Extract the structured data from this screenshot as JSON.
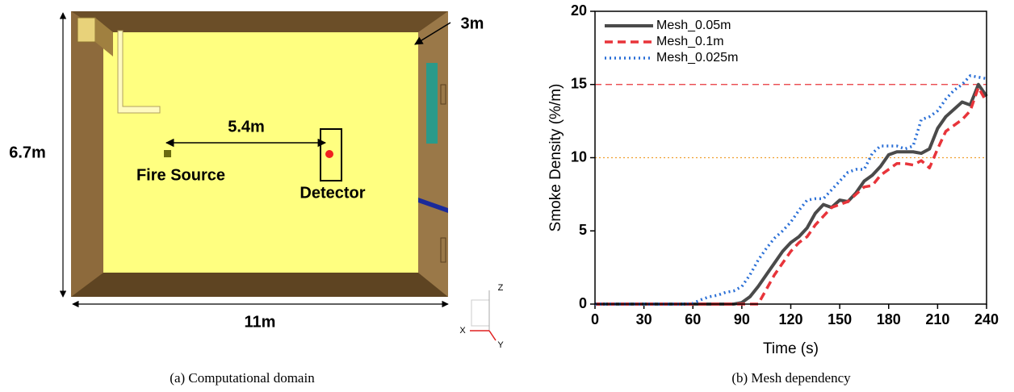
{
  "diagram": {
    "depth_label": "3m",
    "height_label": "6.7m",
    "width_label": "11m",
    "distance_label": "5.4m",
    "fire_source": "Fire Source",
    "detector": "Detector",
    "axes": {
      "z": "Z",
      "x": "X",
      "y": "Y"
    }
  },
  "captions": [
    "(a)  Computational domain",
    "(b)  Mesh dependency"
  ],
  "chart_data": {
    "type": "line",
    "x_label": "Time (s)",
    "y_label": "Smoke Density (%/m)",
    "x": [
      0,
      5,
      10,
      15,
      20,
      25,
      30,
      35,
      40,
      45,
      50,
      55,
      60,
      65,
      70,
      75,
      80,
      85,
      90,
      95,
      100,
      105,
      110,
      115,
      120,
      125,
      130,
      135,
      140,
      145,
      150,
      155,
      160,
      165,
      170,
      175,
      180,
      185,
      190,
      195,
      200,
      205,
      210,
      215,
      220,
      225,
      230,
      235,
      240
    ],
    "series": [
      {
        "name": "Mesh_0.05m",
        "color": "#4a4a4a",
        "line_style": "solid",
        "values": [
          0,
          0,
          0,
          0,
          0,
          0,
          0,
          0,
          0,
          0,
          0,
          0,
          0,
          0,
          0,
          0,
          0,
          0,
          0.1,
          0.5,
          1.2,
          2.0,
          2.8,
          3.6,
          4.2,
          4.6,
          5.2,
          6.2,
          6.8,
          6.6,
          7.1,
          7.0,
          7.6,
          8.4,
          8.8,
          9.4,
          10.2,
          10.4,
          10.4,
          10.4,
          10.3,
          10.6,
          12.0,
          12.8,
          13.3,
          13.8,
          13.6,
          15.0,
          14.2
        ]
      },
      {
        "name": "Mesh_0.1m",
        "color": "#e8343a",
        "line_style": "dashed",
        "values": [
          0,
          0,
          0,
          0,
          0,
          0,
          0,
          0,
          0,
          0,
          0,
          0,
          0,
          0,
          0,
          0,
          0,
          0,
          0,
          0,
          0,
          1.0,
          2.0,
          2.8,
          3.6,
          4.2,
          4.6,
          5.4,
          6.0,
          6.6,
          6.8,
          7.0,
          7.5,
          8.0,
          8.1,
          8.8,
          9.2,
          9.6,
          9.6,
          9.5,
          9.8,
          9.3,
          10.6,
          11.8,
          12.2,
          12.6,
          13.2,
          14.8,
          13.8
        ]
      },
      {
        "name": "Mesh_0.025m",
        "color": "#2a6fd6",
        "line_style": "dotted",
        "values": [
          0,
          0,
          0,
          0,
          0,
          0,
          0,
          0,
          0,
          0,
          0,
          0,
          0.05,
          0.3,
          0.5,
          0.6,
          0.8,
          0.9,
          1.2,
          2.0,
          3.0,
          3.8,
          4.5,
          5.0,
          5.6,
          6.4,
          7.1,
          7.2,
          7.2,
          7.8,
          8.4,
          9.0,
          9.2,
          9.2,
          10.3,
          10.8,
          10.8,
          10.8,
          10.6,
          10.8,
          12.6,
          12.8,
          13.2,
          14.0,
          14.6,
          15.0,
          15.6,
          15.5,
          15.4
        ]
      }
    ],
    "reference_lines": [
      {
        "value": 15,
        "color": "#e8343a",
        "line_style": "dashed"
      },
      {
        "value": 10,
        "color": "#f0a030",
        "line_style": "dotted"
      }
    ],
    "xlim": [
      0,
      240
    ],
    "xticks": [
      0,
      30,
      60,
      90,
      120,
      150,
      180,
      210,
      240
    ],
    "ylim": [
      0,
      20
    ],
    "yticks": [
      0,
      5,
      10,
      15,
      20
    ],
    "grid": false,
    "legend": "upper-left"
  }
}
